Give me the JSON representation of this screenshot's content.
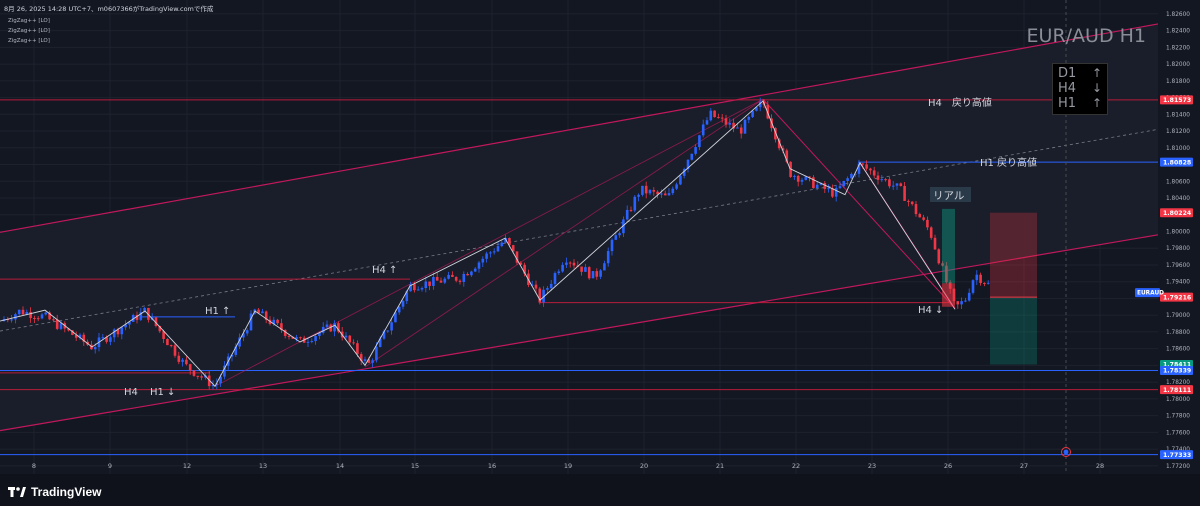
{
  "header": {
    "text": "8月 26, 2025 14:28 UTC+7、m0607366がTradingView.comで作成",
    "indicators": [
      "ZigZag++ [LO]",
      "ZigZag++ [LO]",
      "ZigZag++ [LO]"
    ]
  },
  "symbol_title": "EUR/AUD H1",
  "trend_panel": [
    {
      "tf": "D1",
      "arrow": "↑"
    },
    {
      "tf": "H4",
      "arrow": "↓"
    },
    {
      "tf": "H1",
      "arrow": "↑"
    }
  ],
  "annotations": {
    "h4_pullback_high": "H4　戻り高値",
    "h1_pullback_high": "H1 戻り高値",
    "real": "リアル",
    "h4_up": "H4 ↑",
    "h1_up": "H1 ↑",
    "h4_left": "H4",
    "h1_down_left": "H1 ↓",
    "h4_down_right": "H4 ↓"
  },
  "colors": {
    "background": "#131722",
    "up_candle": "#2962ff",
    "down_candle": "#f23645",
    "red_line": "#c2185b",
    "blue_line": "#2962ff",
    "white_zigzag": "#d1d4dc"
  },
  "price_labels": [
    {
      "value": "1.81573",
      "color": "#f23645"
    },
    {
      "value": "1.80828",
      "color": "#2962ff"
    },
    {
      "value": "1.80224",
      "color": "#f23645"
    },
    {
      "value": "1.79216",
      "color": "#f23645"
    },
    {
      "value": "1.78411",
      "color": "#089981"
    },
    {
      "value": "1.78339",
      "color": "#2962ff"
    },
    {
      "value": "1.78111",
      "color": "#f23645"
    },
    {
      "value": "1.77333",
      "color": "#2962ff"
    }
  ],
  "symbol_tag": "EURAUD",
  "footer": {
    "brand": "TradingView"
  },
  "chart_data": {
    "type": "candlestick",
    "title": "EUR/AUD H1",
    "x_ticks": [
      "8",
      "9",
      "12",
      "13",
      "14",
      "15",
      "16",
      "19",
      "20",
      "21",
      "22",
      "23",
      "26",
      "27",
      "28"
    ],
    "y_ticks": [
      "1.82600",
      "1.82400",
      "1.82200",
      "1.82000",
      "1.81800",
      "1.81600",
      "1.81400",
      "1.81200",
      "1.81000",
      "1.80800",
      "1.80600",
      "1.80400",
      "1.80200",
      "1.80000",
      "1.79800",
      "1.79600",
      "1.79400",
      "1.79200",
      "1.79000",
      "1.78800",
      "1.78600",
      "1.78400",
      "1.78200",
      "1.78000",
      "1.77800",
      "1.77600",
      "1.77400",
      "1.77200"
    ],
    "ylim": [
      1.7715,
      1.8273
    ],
    "zigzag_pivots": [
      {
        "day": "8",
        "price": 1.7895
      },
      {
        "day": "8",
        "price": 1.7865
      },
      {
        "day": "9",
        "price": 1.7908
      },
      {
        "day": "12",
        "price": 1.7815
      },
      {
        "day": "13",
        "price": 1.7905
      },
      {
        "day": "14",
        "price": 1.7858
      },
      {
        "day": "15",
        "price": 1.7932
      },
      {
        "day": "16",
        "price": 1.7992
      },
      {
        "day": "19",
        "price": 1.7917
      },
      {
        "day": "21",
        "price": 1.8156
      },
      {
        "day": "23",
        "price": 1.8082
      },
      {
        "day": "26",
        "price": 1.7907
      }
    ]
  }
}
